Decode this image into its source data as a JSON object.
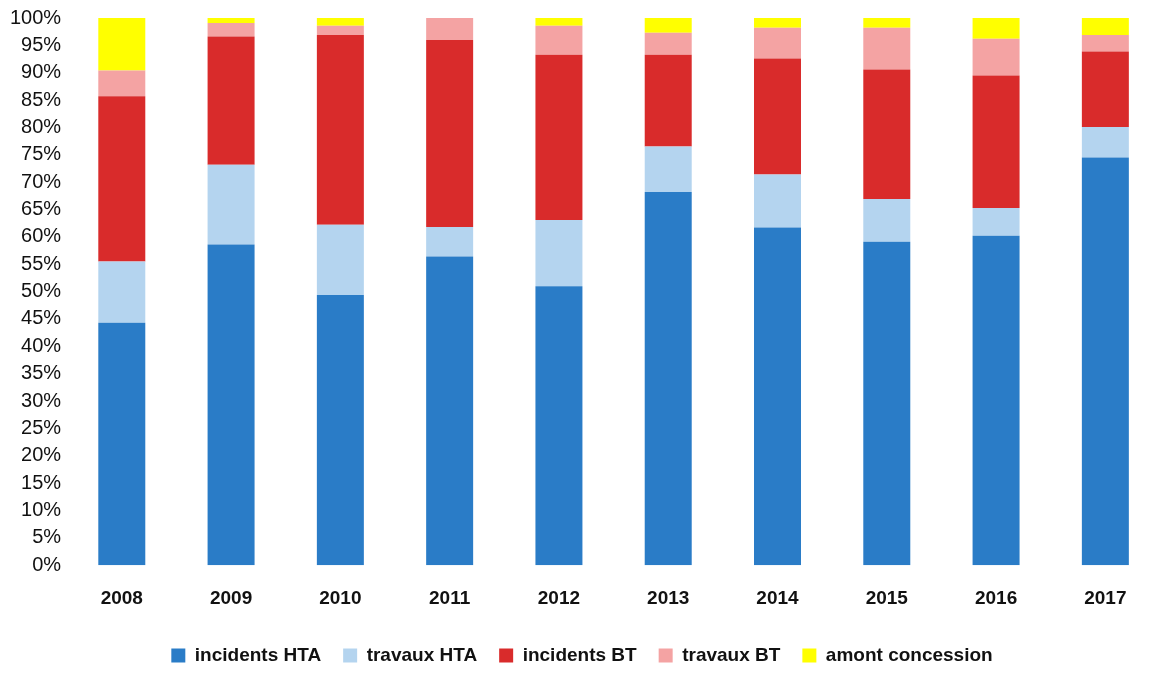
{
  "chart_data": {
    "type": "bar",
    "stacked": true,
    "categories": [
      "2008",
      "2009",
      "2010",
      "2011",
      "2012",
      "2013",
      "2014",
      "2015",
      "2016",
      "2017"
    ],
    "series": [
      {
        "name": "incidents HTA",
        "color": "#2a7cc7",
        "values": [
          44.3,
          58.6,
          49.4,
          56.4,
          51.0,
          68.2,
          61.7,
          59.1,
          60.2,
          74.5
        ]
      },
      {
        "name": "travaux HTA",
        "color": "#b4d4ef",
        "values": [
          11.2,
          14.6,
          12.8,
          5.4,
          12.1,
          8.3,
          9.7,
          7.8,
          5.1,
          5.6
        ]
      },
      {
        "name": "incidents BT",
        "color": "#d92b2b",
        "values": [
          30.2,
          23.4,
          34.7,
          34.2,
          30.2,
          16.8,
          21.2,
          23.7,
          24.2,
          13.8
        ]
      },
      {
        "name": "travaux BT",
        "color": "#f4a3a3",
        "values": [
          4.7,
          2.5,
          1.7,
          4.0,
          5.3,
          4.0,
          5.6,
          7.6,
          6.7,
          3.0
        ]
      },
      {
        "name": "amont concession",
        "color": "#ffff00",
        "values": [
          9.6,
          0.9,
          1.4,
          0,
          1.4,
          2.7,
          1.8,
          1.8,
          3.8,
          3.1
        ]
      }
    ],
    "ylim": [
      0,
      100
    ],
    "yticks": [
      {
        "value": 0,
        "label": "0%"
      },
      {
        "value": 5,
        "label": "5%"
      },
      {
        "value": 10,
        "label": "10%"
      },
      {
        "value": 15,
        "label": "15%"
      },
      {
        "value": 20,
        "label": "20%"
      },
      {
        "value": 25,
        "label": "25%"
      },
      {
        "value": 30,
        "label": "30%"
      },
      {
        "value": 35,
        "label": "35%"
      },
      {
        "value": 40,
        "label": "40%"
      },
      {
        "value": 45,
        "label": "45%"
      },
      {
        "value": 50,
        "label": "50%"
      },
      {
        "value": 55,
        "label": "55%"
      },
      {
        "value": 60,
        "label": "60%"
      },
      {
        "value": 65,
        "label": "65%"
      },
      {
        "value": 70,
        "label": "70%"
      },
      {
        "value": 75,
        "label": "75%"
      },
      {
        "value": 80,
        "label": "80%"
      },
      {
        "value": 85,
        "label": "85%"
      },
      {
        "value": 90,
        "label": "90%"
      },
      {
        "value": 95,
        "label": "95%"
      },
      {
        "value": 100,
        "label": "100%"
      }
    ],
    "grid": false,
    "legend": "bottom"
  }
}
